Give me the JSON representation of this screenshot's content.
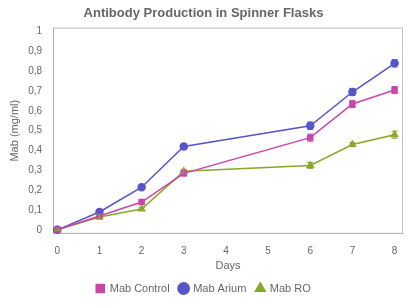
{
  "chart_data": {
    "type": "line",
    "title": "Antibody Production in Spinner Flasks",
    "x_label": "Days",
    "y_label": "Mab (mg/ml)",
    "x": [
      0,
      1,
      2,
      3,
      6,
      7,
      8
    ],
    "xlim": [
      -0.1,
      8.2
    ],
    "xticks": [
      0,
      1,
      2,
      3,
      4,
      5,
      6,
      7,
      8
    ],
    "ylim": [
      -0.02,
      1.02
    ],
    "yticks": [
      0,
      {
        "value": 0.1,
        "label": "0,1"
      },
      {
        "value": 0.2,
        "label": "0,2"
      },
      {
        "value": 0.3,
        "label": "0,3"
      },
      {
        "value": 0.4,
        "label": "0,4"
      },
      {
        "value": 0.5,
        "label": "0,5"
      },
      {
        "value": 0.6,
        "label": "0,6"
      },
      {
        "value": 0.7,
        "label": "0,7"
      },
      {
        "value": 0.8,
        "label": "0,8"
      },
      {
        "value": 0.9,
        "label": "0,9"
      },
      1
    ],
    "grid": false,
    "legend": "bottom",
    "series": [
      {
        "name": "Mab Control",
        "color": "#cc44aa",
        "marker": "square",
        "values": [
          0.0,
          0.07,
          0.14,
          0.285,
          0.465,
          0.635,
          0.705
        ],
        "yerr": [
          0.004,
          0.012,
          0.01,
          0.013,
          0.018,
          0.018,
          0.018
        ]
      },
      {
        "name": "Mab Arium",
        "color": "#5555cc",
        "marker": "circle",
        "values": [
          0.0,
          0.09,
          0.215,
          0.42,
          0.525,
          0.695,
          0.84
        ],
        "yerr": [
          0.004,
          0.012,
          0.01,
          0.013,
          0.018,
          0.018,
          0.018
        ]
      },
      {
        "name": "Mab RO",
        "color": "#88aa22",
        "marker": "triangle",
        "values": [
          0.0,
          0.065,
          0.105,
          0.295,
          0.325,
          0.43,
          0.48
        ],
        "yerr": [
          0.004,
          0.01,
          0.008,
          0.01,
          0.015,
          0.01,
          0.018
        ]
      }
    ]
  }
}
